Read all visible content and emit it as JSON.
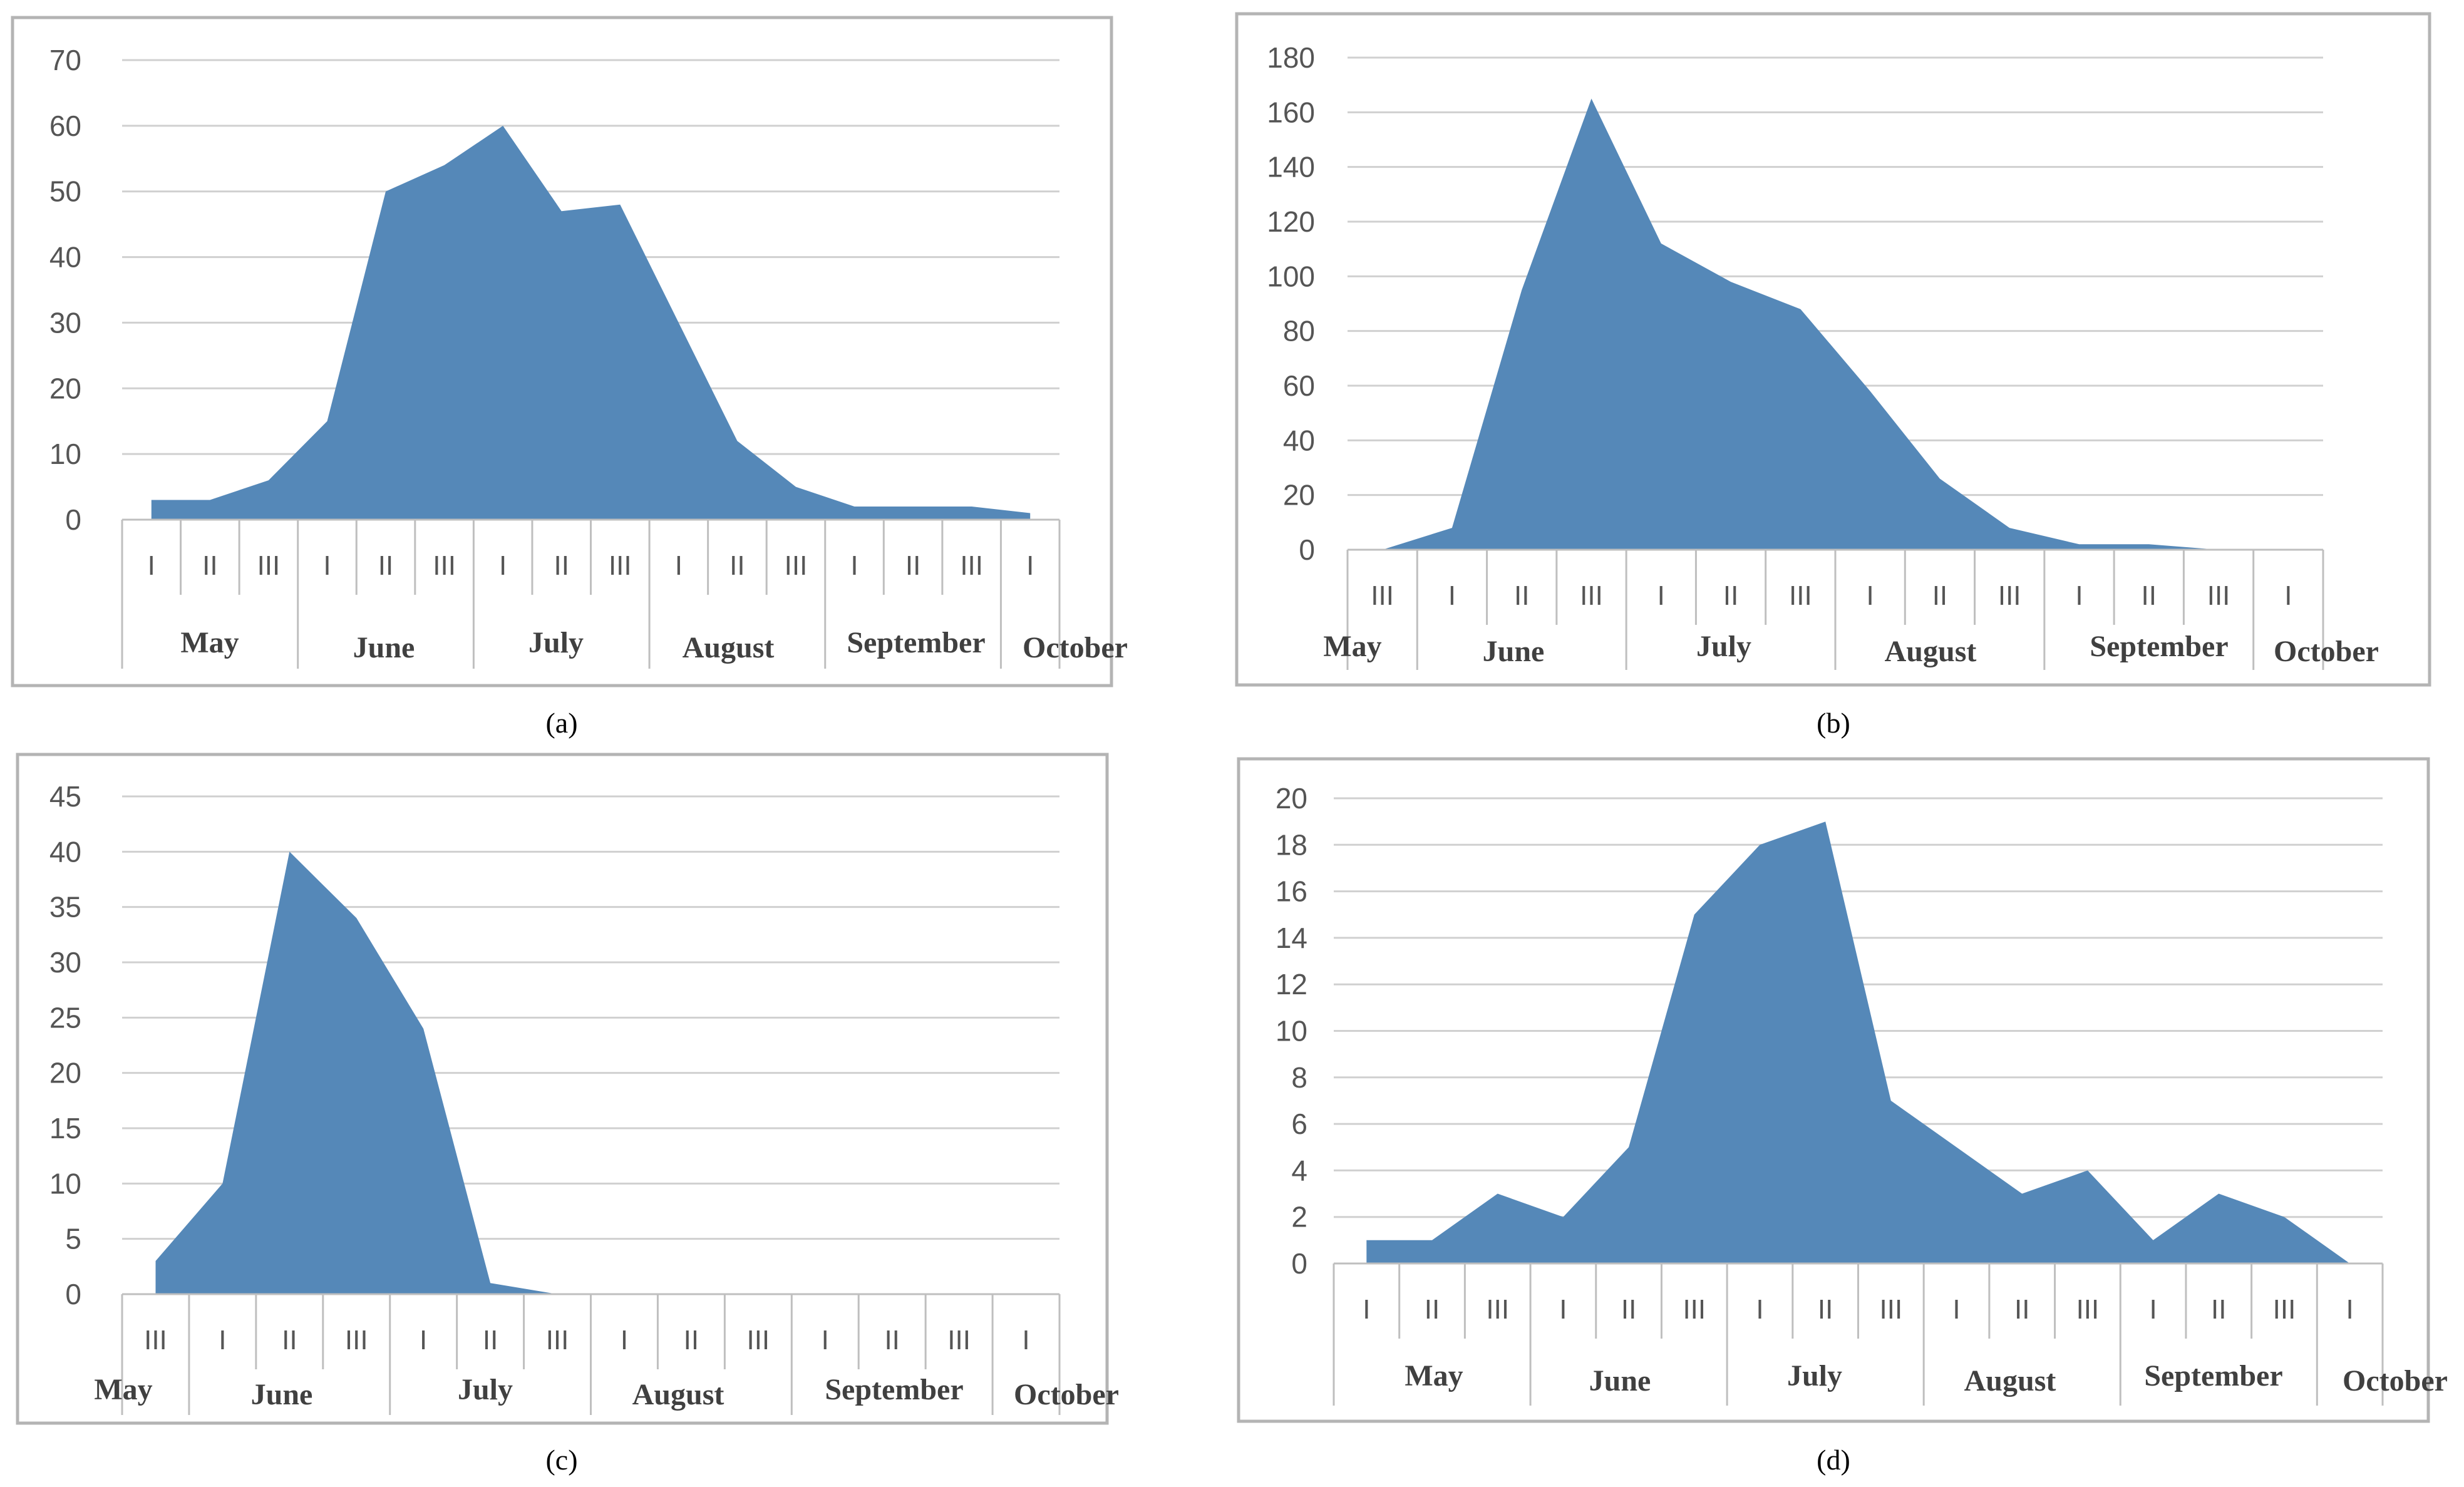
{
  "colors": {
    "area": "#5588b8",
    "grid": "#d0d0d0",
    "frame": "#b4b4b4",
    "axis": "#bfbfbf"
  },
  "chart_data": [
    {
      "type": "area",
      "panel": "(a)",
      "ylim": [
        0,
        70
      ],
      "yticks": [
        "0",
        "10",
        "20",
        "30",
        "40",
        "50",
        "60",
        "70"
      ],
      "decades": [
        "I",
        "II",
        "III",
        "I",
        "II",
        "III",
        "I",
        "II",
        "III",
        "I",
        "II",
        "III",
        "I",
        "II",
        "III",
        "I"
      ],
      "months": [
        "May",
        "June",
        "July",
        "August",
        "September",
        "October"
      ],
      "values": [
        3,
        3,
        6,
        15,
        50,
        54,
        60,
        47,
        48,
        30,
        12,
        5,
        2,
        2,
        2,
        1
      ]
    },
    {
      "type": "area",
      "panel": "(b)",
      "ylim": [
        0,
        180
      ],
      "yticks": [
        "0",
        "20",
        "40",
        "60",
        "80",
        "100",
        "120",
        "140",
        "160",
        "180"
      ],
      "decades": [
        "III",
        "I",
        "II",
        "III",
        "I",
        "II",
        "III",
        "I",
        "II",
        "III",
        "I",
        "II",
        "III",
        "I"
      ],
      "months": [
        "May",
        "June",
        "July",
        "August",
        "September",
        "October"
      ],
      "values": [
        0,
        8,
        95,
        165,
        112,
        98,
        88,
        58,
        26,
        8,
        2,
        2,
        0,
        0
      ]
    },
    {
      "type": "area",
      "panel": "(c)",
      "ylim": [
        0,
        45
      ],
      "yticks": [
        "0",
        "5",
        "10",
        "15",
        "20",
        "25",
        "30",
        "35",
        "40",
        "45"
      ],
      "decades": [
        "III",
        "I",
        "II",
        "III",
        "I",
        "II",
        "III",
        "I",
        "II",
        "III",
        "I",
        "II",
        "III",
        "I"
      ],
      "months": [
        "May",
        "June",
        "July",
        "August",
        "September",
        "October"
      ],
      "values": [
        3,
        10,
        40,
        34,
        24,
        1,
        0,
        0,
        0,
        0,
        0,
        0,
        0,
        0
      ]
    },
    {
      "type": "area",
      "panel": "(d)",
      "ylim": [
        0,
        20
      ],
      "yticks": [
        "0",
        "2",
        "4",
        "6",
        "8",
        "10",
        "12",
        "14",
        "16",
        "18",
        "20"
      ],
      "decades": [
        "I",
        "II",
        "III",
        "I",
        "II",
        "III",
        "I",
        "II",
        "III",
        "I",
        "II",
        "III",
        "I",
        "II",
        "III",
        "I"
      ],
      "months": [
        "May",
        "June",
        "July",
        "August",
        "September",
        "October"
      ],
      "values": [
        1,
        1,
        3,
        2,
        5,
        15,
        18,
        19,
        7,
        5,
        3,
        4,
        1,
        3,
        2,
        0
      ]
    }
  ]
}
